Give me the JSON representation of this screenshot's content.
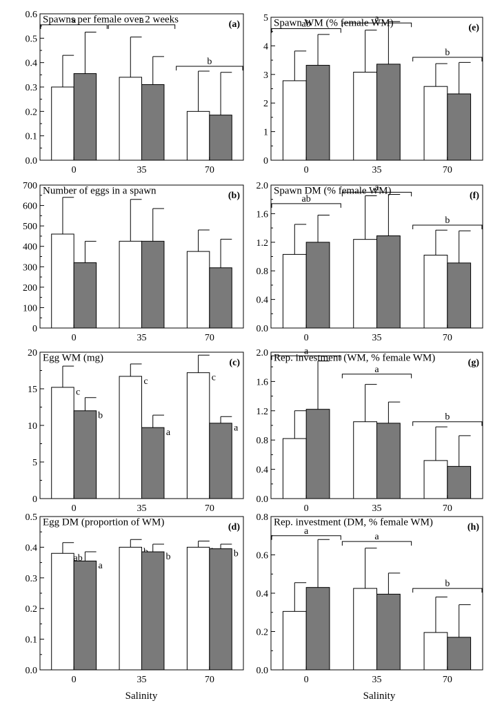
{
  "figure": {
    "xlabel_left": "Salinity",
    "xlabel_right": "Salinity"
  },
  "colors": {
    "series_a": "#ffffff",
    "series_b": "#7a7a7a",
    "axis": "#000000"
  },
  "chart_data": [
    {
      "id": "a",
      "type": "bar",
      "title": "Spawns per female over 2 weeks",
      "panel_label": "(a)",
      "categories": [
        "0",
        "35",
        "70"
      ],
      "ylim": [
        0,
        0.6
      ],
      "yticks": [
        0,
        0.1,
        0.2,
        0.3,
        0.4,
        0.5,
        0.6
      ],
      "ytick_labels": [
        "0.0",
        "0.1",
        "0.2",
        "0.3",
        "0.4",
        "0.5",
        "0.6"
      ],
      "series": [
        {
          "values": [
            0.3,
            0.34,
            0.2
          ],
          "errors": [
            0.43,
            0.505,
            0.365
          ],
          "bar_labels": [
            "",
            "",
            ""
          ]
        },
        {
          "values": [
            0.355,
            0.31,
            0.185
          ],
          "errors": [
            0.525,
            0.425,
            0.36
          ],
          "bar_labels": [
            "",
            "",
            ""
          ]
        }
      ],
      "brackets": [
        {
          "from": 0,
          "to": 0,
          "level": 0.555,
          "label": "a"
        },
        {
          "from": 1,
          "to": 1,
          "level": 0.555,
          "label": "a"
        },
        {
          "from": 2,
          "to": 2,
          "level": 0.385,
          "label": "b"
        }
      ]
    },
    {
      "id": "b",
      "type": "bar",
      "title": "Number of eggs in a spawn",
      "panel_label": "(b)",
      "categories": [
        "0",
        "35",
        "70"
      ],
      "ylim": [
        0,
        700
      ],
      "yticks": [
        0,
        100,
        200,
        300,
        400,
        500,
        600,
        700
      ],
      "ytick_labels": [
        "0",
        "100",
        "200",
        "300",
        "400",
        "500",
        "600",
        "700"
      ],
      "series": [
        {
          "values": [
            460,
            425,
            375
          ],
          "errors": [
            640,
            630,
            480
          ],
          "bar_labels": [
            "",
            "",
            ""
          ]
        },
        {
          "values": [
            320,
            425,
            295
          ],
          "errors": [
            425,
            585,
            435
          ],
          "bar_labels": [
            "",
            "",
            ""
          ]
        }
      ],
      "brackets": []
    },
    {
      "id": "c",
      "type": "bar",
      "title": "Egg WM (mg)",
      "panel_label": "(c)",
      "categories": [
        "0",
        "35",
        "70"
      ],
      "ylim": [
        0,
        20
      ],
      "yticks": [
        0,
        5,
        10,
        15,
        20
      ],
      "ytick_labels": [
        "0",
        "5",
        "10",
        "15",
        "20"
      ],
      "series": [
        {
          "values": [
            15.2,
            16.7,
            17.2
          ],
          "errors": [
            18.1,
            18.4,
            19.6
          ],
          "bar_labels": [
            "c",
            "c",
            "c"
          ]
        },
        {
          "values": [
            12.0,
            9.7,
            10.3
          ],
          "errors": [
            13.8,
            11.4,
            11.2
          ],
          "bar_labels": [
            "b",
            "a",
            "a"
          ]
        }
      ],
      "brackets": []
    },
    {
      "id": "d",
      "type": "bar",
      "title": "Egg DM (proportion of WM)",
      "panel_label": "(d)",
      "categories": [
        "0",
        "35",
        "70"
      ],
      "ylim": [
        0,
        0.5
      ],
      "yticks": [
        0,
        0.1,
        0.2,
        0.3,
        0.4,
        0.5
      ],
      "ytick_labels": [
        "0.0",
        "0.1",
        "0.2",
        "0.3",
        "0.4",
        "0.5"
      ],
      "series": [
        {
          "values": [
            0.38,
            0.4,
            0.4
          ],
          "errors": [
            0.415,
            0.425,
            0.42
          ],
          "bar_labels": [
            "ab",
            "b",
            "b"
          ]
        },
        {
          "values": [
            0.355,
            0.385,
            0.395
          ],
          "errors": [
            0.385,
            0.41,
            0.41
          ],
          "bar_labels": [
            "a",
            "b",
            "b"
          ]
        }
      ],
      "brackets": []
    },
    {
      "id": "e",
      "type": "bar",
      "title": "Spawn WM (% female WM)",
      "panel_label": "(e)",
      "categories": [
        "0",
        "35",
        "70"
      ],
      "ylim": [
        0,
        5
      ],
      "yticks": [
        0,
        1,
        2,
        3,
        4,
        5
      ],
      "ytick_labels": [
        "0",
        "1",
        "2",
        "3",
        "4",
        "5"
      ],
      "series": [
        {
          "values": [
            2.78,
            3.08,
            2.58
          ],
          "errors": [
            3.82,
            4.55,
            3.38
          ],
          "bar_labels": [
            "",
            "",
            ""
          ]
        },
        {
          "values": [
            3.32,
            3.36,
            2.32
          ],
          "errors": [
            4.4,
            4.85,
            3.42
          ],
          "bar_labels": [
            "",
            "",
            ""
          ]
        }
      ],
      "brackets": [
        {
          "from": 0,
          "to": 0,
          "level": 4.6,
          "label": "ab"
        },
        {
          "from": 1,
          "to": 1,
          "level": 4.8,
          "label": "a"
        },
        {
          "from": 2,
          "to": 2,
          "level": 3.6,
          "label": "b"
        }
      ]
    },
    {
      "id": "f",
      "type": "bar",
      "title": "Spawn DM (% female WM)",
      "panel_label": "(f)",
      "categories": [
        "0",
        "35",
        "70"
      ],
      "ylim": [
        0,
        2.0
      ],
      "yticks": [
        0,
        0.4,
        0.8,
        1.2,
        1.6,
        2.0
      ],
      "ytick_labels": [
        "0.0",
        "0.4",
        "0.8",
        "1.2",
        "1.6",
        "2.0"
      ],
      "series": [
        {
          "values": [
            1.03,
            1.24,
            1.02
          ],
          "errors": [
            1.45,
            1.85,
            1.37
          ],
          "bar_labels": [
            "",
            "",
            ""
          ]
        },
        {
          "values": [
            1.2,
            1.29,
            0.91
          ],
          "errors": [
            1.58,
            1.87,
            1.36
          ],
          "bar_labels": [
            "",
            "",
            ""
          ]
        }
      ],
      "brackets": [
        {
          "from": 0,
          "to": 0,
          "level": 1.74,
          "label": "ab"
        },
        {
          "from": 1,
          "to": 1,
          "level": 1.9,
          "label": "a"
        },
        {
          "from": 2,
          "to": 2,
          "level": 1.44,
          "label": "b"
        }
      ]
    },
    {
      "id": "g",
      "type": "bar",
      "title": "Rep. investment (WM, % female WM)",
      "panel_label": "(g)",
      "categories": [
        "0",
        "35",
        "70"
      ],
      "ylim": [
        0,
        2.0
      ],
      "yticks": [
        0,
        0.4,
        0.8,
        1.2,
        1.6,
        2.0
      ],
      "ytick_labels": [
        "0.0",
        "0.4",
        "0.8",
        "1.2",
        "1.6",
        "2.0"
      ],
      "series": [
        {
          "values": [
            0.82,
            1.05,
            0.52
          ],
          "errors": [
            1.2,
            1.56,
            0.98
          ],
          "bar_labels": [
            "",
            "",
            ""
          ]
        },
        {
          "values": [
            1.22,
            1.03,
            0.44
          ],
          "errors": [
            1.88,
            1.32,
            0.86
          ],
          "bar_labels": [
            "",
            "",
            ""
          ]
        }
      ],
      "brackets": [
        {
          "from": 0,
          "to": 0,
          "level": 1.95,
          "label": "a"
        },
        {
          "from": 1,
          "to": 1,
          "level": 1.7,
          "label": "a"
        },
        {
          "from": 2,
          "to": 2,
          "level": 1.05,
          "label": "b"
        }
      ]
    },
    {
      "id": "h",
      "type": "bar",
      "title": "Rep. investment (DM, % female WM)",
      "panel_label": "(h)",
      "categories": [
        "0",
        "35",
        "70"
      ],
      "ylim": [
        0,
        0.8
      ],
      "yticks": [
        0,
        0.2,
        0.4,
        0.6,
        0.8
      ],
      "ytick_labels": [
        "0.0",
        "0.2",
        "0.4",
        "0.6",
        "0.8"
      ],
      "series": [
        {
          "values": [
            0.305,
            0.425,
            0.195
          ],
          "errors": [
            0.455,
            0.635,
            0.38
          ],
          "bar_labels": [
            "",
            "",
            ""
          ]
        },
        {
          "values": [
            0.43,
            0.395,
            0.17
          ],
          "errors": [
            0.68,
            0.505,
            0.34
          ],
          "bar_labels": [
            "",
            "",
            ""
          ]
        }
      ],
      "brackets": [
        {
          "from": 0,
          "to": 0,
          "level": 0.7,
          "label": "a"
        },
        {
          "from": 1,
          "to": 1,
          "level": 0.67,
          "label": "a"
        },
        {
          "from": 2,
          "to": 2,
          "level": 0.425,
          "label": "b"
        }
      ]
    }
  ]
}
